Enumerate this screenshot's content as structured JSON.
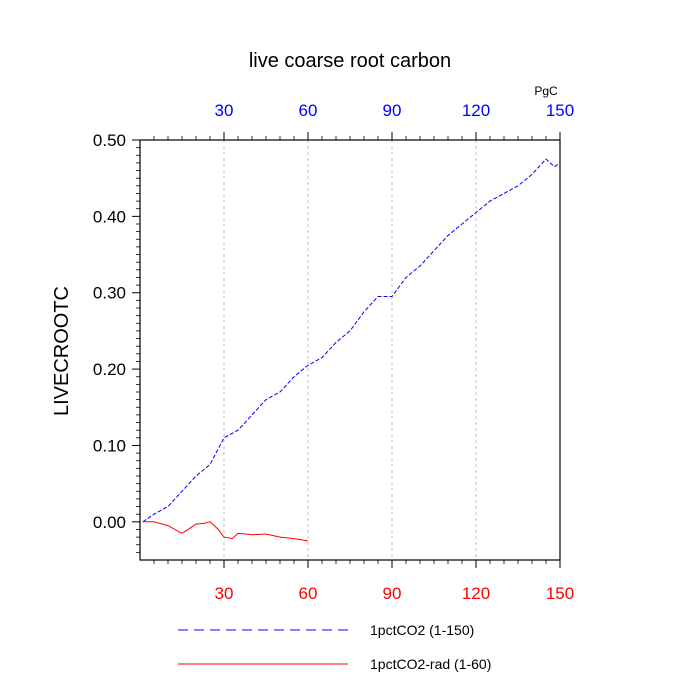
{
  "chart_data": {
    "type": "line",
    "title": "live coarse root carbon",
    "ylabel": "LIVECROOTC",
    "top_axis_unit": "PgC",
    "xlim": [
      0,
      150
    ],
    "ylim": [
      -0.05,
      0.5
    ],
    "bottom_ticks": [
      "30",
      "60",
      "90",
      "120",
      "150"
    ],
    "bottom_tick_values": [
      30,
      60,
      90,
      120,
      150
    ],
    "top_ticks": [
      "30",
      "60",
      "90",
      "120",
      "150"
    ],
    "top_tick_values": [
      30,
      60,
      90,
      120,
      150
    ],
    "y_ticks": [
      "0.50",
      "0.40",
      "0.30",
      "0.20",
      "0.10",
      "0.00"
    ],
    "y_tick_values": [
      0.5,
      0.4,
      0.3,
      0.2,
      0.1,
      0.0
    ],
    "vertical_grid": true,
    "colors": {
      "top_axis": "#0000ff",
      "bottom_axis": "#ff0000",
      "grid": "#b0b0b0"
    },
    "series": [
      {
        "name": "1pctCO2 (1-150)",
        "color": "#0000ff",
        "dash": "dashed",
        "x": [
          1,
          5,
          10,
          15,
          20,
          25,
          30,
          35,
          40,
          45,
          50,
          55,
          60,
          65,
          70,
          75,
          80,
          85,
          90,
          95,
          100,
          105,
          110,
          115,
          120,
          125,
          130,
          135,
          140,
          145,
          148,
          150
        ],
        "values": [
          0.0,
          0.01,
          0.02,
          0.04,
          0.06,
          0.075,
          0.11,
          0.12,
          0.14,
          0.16,
          0.17,
          0.19,
          0.205,
          0.215,
          0.235,
          0.25,
          0.275,
          0.295,
          0.295,
          0.32,
          0.335,
          0.355,
          0.375,
          0.39,
          0.405,
          0.42,
          0.43,
          0.44,
          0.455,
          0.475,
          0.465,
          0.47
        ]
      },
      {
        "name": "1pctCO2-rad (1-60)",
        "color": "#ff0000",
        "dash": "solid",
        "x": [
          1,
          5,
          10,
          15,
          18,
          20,
          23,
          25,
          28,
          30,
          33,
          35,
          40,
          45,
          50,
          55,
          60
        ],
        "values": [
          0.0,
          0.0,
          -0.005,
          -0.015,
          -0.008,
          -0.003,
          -0.002,
          0.0,
          -0.01,
          -0.02,
          -0.022,
          -0.015,
          -0.017,
          -0.016,
          -0.02,
          -0.022,
          -0.025
        ]
      }
    ],
    "legend": {
      "placement": "bottom",
      "entries": [
        "1pctCO2 (1-150)",
        "1pctCO2-rad (1-60)"
      ]
    }
  }
}
